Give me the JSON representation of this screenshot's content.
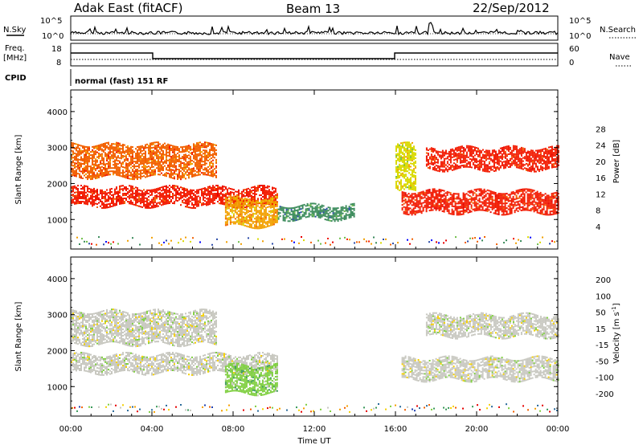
{
  "header": {
    "station": "Adak East (fitACF)",
    "beam": "Beam 13",
    "date": "22/Sep/2012"
  },
  "panels": {
    "nsky_label": "N.Sky",
    "nsearch_label": "N.Search",
    "nsky_ticks": [
      "10^5",
      "10^0"
    ],
    "nsearch_ticks": [
      "10^5",
      "10^0"
    ],
    "freq_label": "Freq.",
    "freq_unit": "[MHz]",
    "freq_ticks": [
      "18",
      "8"
    ],
    "nave_label": "Nave",
    "nave_ticks": [
      "60",
      "0"
    ],
    "cpid_label": "CPID",
    "cpid_value": "normal (fast) 151 RF"
  },
  "chart_data": [
    {
      "type": "heatmap",
      "title": "",
      "xlabel": "Time UT",
      "ylabel": "Slant Range [km]",
      "x_ticks": [
        "00:00",
        "04:00",
        "08:00",
        "12:00",
        "16:00",
        "20:00",
        "00:00"
      ],
      "x_range_hours": [
        0,
        24
      ],
      "y_ticks": [
        "1000",
        "2000",
        "3000",
        "4000"
      ],
      "ylim": [
        180,
        4600
      ],
      "colorbar": {
        "label": "Power [dB]",
        "ticks": [
          "4",
          "8",
          "12",
          "16",
          "20",
          "24",
          "28"
        ],
        "range": [
          0,
          30
        ],
        "colors": [
          "#0000ff",
          "#2a4aa8",
          "#3a8a5a",
          "#6fbf4a",
          "#d9d900",
          "#f2a000",
          "#f26000",
          "#f21a00",
          "#e60000"
        ]
      },
      "echo_bands": [
        {
          "start_h": 0.0,
          "end_h": 10.2,
          "range_km": [
            1400,
            1900
          ],
          "level_db": 26
        },
        {
          "start_h": 0.0,
          "end_h": 7.2,
          "range_km": [
            2200,
            3100
          ],
          "level_db": 24
        },
        {
          "start_h": 7.6,
          "end_h": 10.2,
          "range_km": [
            800,
            1600
          ],
          "level_db": 20
        },
        {
          "start_h": 10.2,
          "end_h": 14.0,
          "range_km": [
            1000,
            1400
          ],
          "level_db": 8
        },
        {
          "start_h": 16.3,
          "end_h": 24.0,
          "range_km": [
            1200,
            1800
          ],
          "level_db": 28
        },
        {
          "start_h": 17.5,
          "end_h": 24.0,
          "range_km": [
            2400,
            3000
          ],
          "level_db": 26
        },
        {
          "start_h": 16.0,
          "end_h": 17.0,
          "range_km": [
            1800,
            3100
          ],
          "level_db": 14
        }
      ]
    },
    {
      "type": "heatmap",
      "title": "",
      "xlabel": "Time UT",
      "ylabel": "Slant Range [km]",
      "x_ticks": [
        "00:00",
        "04:00",
        "08:00",
        "12:00",
        "16:00",
        "20:00",
        "00:00"
      ],
      "x_range_hours": [
        0,
        24
      ],
      "y_ticks": [
        "1000",
        "2000",
        "3000",
        "4000"
      ],
      "ylim": [
        180,
        4600
      ],
      "colorbar": {
        "label": "Velocity [m s",
        "label_sup": "-1",
        "label_end": "]",
        "ticks": [
          "200",
          "100",
          "50",
          "15",
          "-15",
          "-50",
          "-100",
          "-200"
        ],
        "range": [
          -250,
          250
        ],
        "colors": [
          "#2040b0",
          "#2a6a9a",
          "#3a9a5a",
          "#7fcf40",
          "#c8c8c0",
          "#f5d000",
          "#f5a000",
          "#f26000",
          "#e60000"
        ]
      },
      "echo_bands": [
        {
          "start_h": 0.0,
          "end_h": 10.2,
          "range_km": [
            1400,
            1900
          ],
          "velocity": 0
        },
        {
          "start_h": 0.0,
          "end_h": 7.2,
          "range_km": [
            2200,
            3100
          ],
          "velocity": 0
        },
        {
          "start_h": 7.6,
          "end_h": 10.2,
          "range_km": [
            800,
            1600
          ],
          "velocity": 60
        },
        {
          "start_h": 16.3,
          "end_h": 24.0,
          "range_km": [
            1200,
            1800
          ],
          "velocity": 0
        },
        {
          "start_h": 17.5,
          "end_h": 24.0,
          "range_km": [
            2400,
            3000
          ],
          "velocity": 0
        }
      ]
    }
  ]
}
